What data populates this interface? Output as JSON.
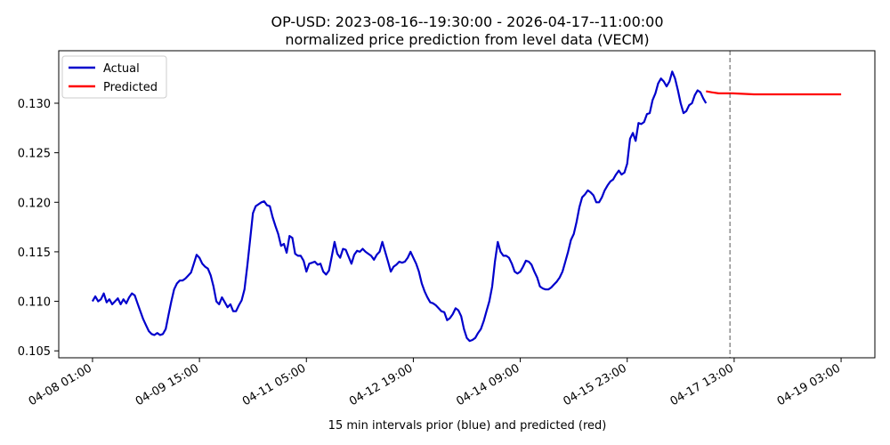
{
  "chart_data": {
    "type": "line",
    "title": "OP-USD: 2023-08-16--19:30:00 - 2026-04-17--11:00:00",
    "subtitle": "normalized price prediction from level data (VECM)",
    "xlabel": "15 min intervals prior (blue) and predicted (red)",
    "ylabel": "",
    "x_unit": "15-minute intervals",
    "x_tick_labels": [
      "04-08 01:00",
      "04-09 15:00",
      "04-11 05:00",
      "04-12 19:00",
      "04-14 09:00",
      "04-15 23:00",
      "04-17 13:00",
      "04-19 03:00"
    ],
    "x_tick_positions": [
      0,
      152,
      304,
      456,
      608,
      760,
      912,
      1064
    ],
    "y_ticks": [
      0.105,
      0.11,
      0.115,
      0.12,
      0.125,
      0.13
    ],
    "y_tick_labels": [
      "0.105",
      "0.110",
      "0.115",
      "0.120",
      "0.125",
      "0.130"
    ],
    "ylim": [
      0.1043,
      0.1353
    ],
    "xlim": [
      -48,
      1112
    ],
    "grid": false,
    "legend_position": "top-left",
    "forecast_start": 906,
    "series": [
      {
        "name": "Actual",
        "color": "#0000cc",
        "points": [
          [
            0,
            0.11
          ],
          [
            4,
            0.1105
          ],
          [
            8,
            0.11
          ],
          [
            12,
            0.1102
          ],
          [
            16,
            0.1108
          ],
          [
            20,
            0.1099
          ],
          [
            24,
            0.1102
          ],
          [
            28,
            0.1097
          ],
          [
            32,
            0.11
          ],
          [
            36,
            0.1103
          ],
          [
            40,
            0.1097
          ],
          [
            44,
            0.1102
          ],
          [
            48,
            0.1098
          ],
          [
            52,
            0.1104
          ],
          [
            56,
            0.1108
          ],
          [
            60,
            0.1106
          ],
          [
            64,
            0.1098
          ],
          [
            68,
            0.109
          ],
          [
            72,
            0.1082
          ],
          [
            76,
            0.1076
          ],
          [
            80,
            0.107
          ],
          [
            84,
            0.1067
          ],
          [
            88,
            0.1066
          ],
          [
            92,
            0.1068
          ],
          [
            96,
            0.1066
          ],
          [
            100,
            0.1067
          ],
          [
            104,
            0.1072
          ],
          [
            108,
            0.1086
          ],
          [
            112,
            0.11
          ],
          [
            116,
            0.1112
          ],
          [
            120,
            0.1118
          ],
          [
            124,
            0.1121
          ],
          [
            128,
            0.1121
          ],
          [
            132,
            0.1123
          ],
          [
            136,
            0.1126
          ],
          [
            140,
            0.1129
          ],
          [
            144,
            0.1138
          ],
          [
            148,
            0.1147
          ],
          [
            152,
            0.1144
          ],
          [
            156,
            0.1138
          ],
          [
            160,
            0.1135
          ],
          [
            164,
            0.1133
          ],
          [
            168,
            0.1126
          ],
          [
            172,
            0.1115
          ],
          [
            176,
            0.11
          ],
          [
            180,
            0.1097
          ],
          [
            184,
            0.1104
          ],
          [
            188,
            0.1099
          ],
          [
            192,
            0.1094
          ],
          [
            196,
            0.1097
          ],
          [
            200,
            0.109
          ],
          [
            204,
            0.109
          ],
          [
            208,
            0.1096
          ],
          [
            212,
            0.1101
          ],
          [
            216,
            0.1112
          ],
          [
            220,
            0.1136
          ],
          [
            224,
            0.1162
          ],
          [
            228,
            0.1189
          ],
          [
            232,
            0.1196
          ],
          [
            236,
            0.1198
          ],
          [
            240,
            0.12
          ],
          [
            244,
            0.1201
          ],
          [
            248,
            0.1197
          ],
          [
            252,
            0.1196
          ],
          [
            256,
            0.1185
          ],
          [
            260,
            0.1176
          ],
          [
            264,
            0.1168
          ],
          [
            268,
            0.1156
          ],
          [
            272,
            0.1158
          ],
          [
            276,
            0.1149
          ],
          [
            280,
            0.1166
          ],
          [
            284,
            0.1164
          ],
          [
            288,
            0.1148
          ],
          [
            292,
            0.1146
          ],
          [
            296,
            0.1146
          ],
          [
            300,
            0.1141
          ],
          [
            304,
            0.113
          ],
          [
            308,
            0.1138
          ],
          [
            312,
            0.1139
          ],
          [
            316,
            0.114
          ],
          [
            320,
            0.1137
          ],
          [
            324,
            0.1138
          ],
          [
            328,
            0.113
          ],
          [
            332,
            0.1127
          ],
          [
            336,
            0.1131
          ],
          [
            340,
            0.1145
          ],
          [
            344,
            0.116
          ],
          [
            348,
            0.1148
          ],
          [
            352,
            0.1144
          ],
          [
            356,
            0.1153
          ],
          [
            360,
            0.1152
          ],
          [
            364,
            0.1145
          ],
          [
            368,
            0.1138
          ],
          [
            372,
            0.1147
          ],
          [
            376,
            0.1151
          ],
          [
            380,
            0.115
          ],
          [
            384,
            0.1153
          ],
          [
            388,
            0.115
          ],
          [
            392,
            0.1148
          ],
          [
            396,
            0.1146
          ],
          [
            400,
            0.1142
          ],
          [
            404,
            0.1147
          ],
          [
            408,
            0.115
          ],
          [
            412,
            0.116
          ],
          [
            416,
            0.115
          ],
          [
            420,
            0.114
          ],
          [
            424,
            0.113
          ],
          [
            428,
            0.1135
          ],
          [
            432,
            0.1137
          ],
          [
            436,
            0.114
          ],
          [
            440,
            0.1139
          ],
          [
            444,
            0.114
          ],
          [
            448,
            0.1144
          ],
          [
            452,
            0.115
          ],
          [
            456,
            0.1144
          ],
          [
            460,
            0.1138
          ],
          [
            464,
            0.113
          ],
          [
            468,
            0.1118
          ],
          [
            472,
            0.111
          ],
          [
            476,
            0.1104
          ],
          [
            480,
            0.1099
          ],
          [
            484,
            0.1098
          ],
          [
            488,
            0.1096
          ],
          [
            492,
            0.1093
          ],
          [
            496,
            0.109
          ],
          [
            500,
            0.1089
          ],
          [
            504,
            0.1081
          ],
          [
            508,
            0.1083
          ],
          [
            512,
            0.1087
          ],
          [
            516,
            0.1093
          ],
          [
            520,
            0.1091
          ],
          [
            524,
            0.1085
          ],
          [
            528,
            0.1072
          ],
          [
            532,
            0.1063
          ],
          [
            536,
            0.106
          ],
          [
            540,
            0.1061
          ],
          [
            544,
            0.1063
          ],
          [
            548,
            0.1068
          ],
          [
            552,
            0.1072
          ],
          [
            556,
            0.108
          ],
          [
            560,
            0.109
          ],
          [
            564,
            0.11
          ],
          [
            568,
            0.1115
          ],
          [
            572,
            0.114
          ],
          [
            576,
            0.116
          ],
          [
            580,
            0.115
          ],
          [
            584,
            0.1146
          ],
          [
            588,
            0.1146
          ],
          [
            592,
            0.1144
          ],
          [
            596,
            0.1138
          ],
          [
            600,
            0.113
          ],
          [
            604,
            0.1128
          ],
          [
            608,
            0.113
          ],
          [
            612,
            0.1135
          ],
          [
            616,
            0.1141
          ],
          [
            620,
            0.114
          ],
          [
            624,
            0.1137
          ],
          [
            628,
            0.113
          ],
          [
            632,
            0.1124
          ],
          [
            636,
            0.1115
          ],
          [
            640,
            0.1113
          ],
          [
            644,
            0.1112
          ],
          [
            648,
            0.1112
          ],
          [
            652,
            0.1114
          ],
          [
            656,
            0.1117
          ],
          [
            660,
            0.112
          ],
          [
            664,
            0.1124
          ],
          [
            668,
            0.113
          ],
          [
            672,
            0.114
          ],
          [
            676,
            0.115
          ],
          [
            680,
            0.1162
          ],
          [
            684,
            0.1168
          ],
          [
            688,
            0.118
          ],
          [
            692,
            0.1195
          ],
          [
            696,
            0.1205
          ],
          [
            700,
            0.1208
          ],
          [
            704,
            0.1212
          ],
          [
            708,
            0.121
          ],
          [
            712,
            0.1207
          ],
          [
            716,
            0.12
          ],
          [
            720,
            0.12
          ],
          [
            724,
            0.1205
          ],
          [
            728,
            0.1212
          ],
          [
            732,
            0.1217
          ],
          [
            736,
            0.1221
          ],
          [
            740,
            0.1223
          ],
          [
            744,
            0.1228
          ],
          [
            748,
            0.1232
          ],
          [
            752,
            0.1228
          ],
          [
            756,
            0.123
          ],
          [
            760,
            0.1239
          ],
          [
            764,
            0.1264
          ],
          [
            768,
            0.127
          ],
          [
            772,
            0.1262
          ],
          [
            776,
            0.128
          ],
          [
            780,
            0.1279
          ],
          [
            784,
            0.1281
          ],
          [
            788,
            0.1289
          ],
          [
            792,
            0.129
          ],
          [
            796,
            0.1303
          ],
          [
            800,
            0.131
          ],
          [
            804,
            0.132
          ],
          [
            808,
            0.1325
          ],
          [
            812,
            0.1322
          ],
          [
            816,
            0.1317
          ],
          [
            820,
            0.1322
          ],
          [
            824,
            0.1332
          ],
          [
            828,
            0.1325
          ],
          [
            832,
            0.1313
          ],
          [
            836,
            0.13
          ],
          [
            840,
            0.129
          ],
          [
            844,
            0.1292
          ],
          [
            848,
            0.1298
          ],
          [
            852,
            0.13
          ],
          [
            856,
            0.1308
          ],
          [
            860,
            0.1313
          ],
          [
            864,
            0.1311
          ],
          [
            868,
            0.1305
          ],
          [
            872,
            0.13
          ]
        ]
      },
      {
        "name": "Predicted",
        "color": "#ff0000",
        "points": [
          [
            872,
            0.1312
          ],
          [
            880,
            0.1311
          ],
          [
            890,
            0.131
          ],
          [
            910,
            0.131
          ],
          [
            940,
            0.1309
          ],
          [
            980,
            0.1309
          ],
          [
            1020,
            0.1309
          ],
          [
            1064,
            0.1309
          ]
        ]
      }
    ]
  }
}
